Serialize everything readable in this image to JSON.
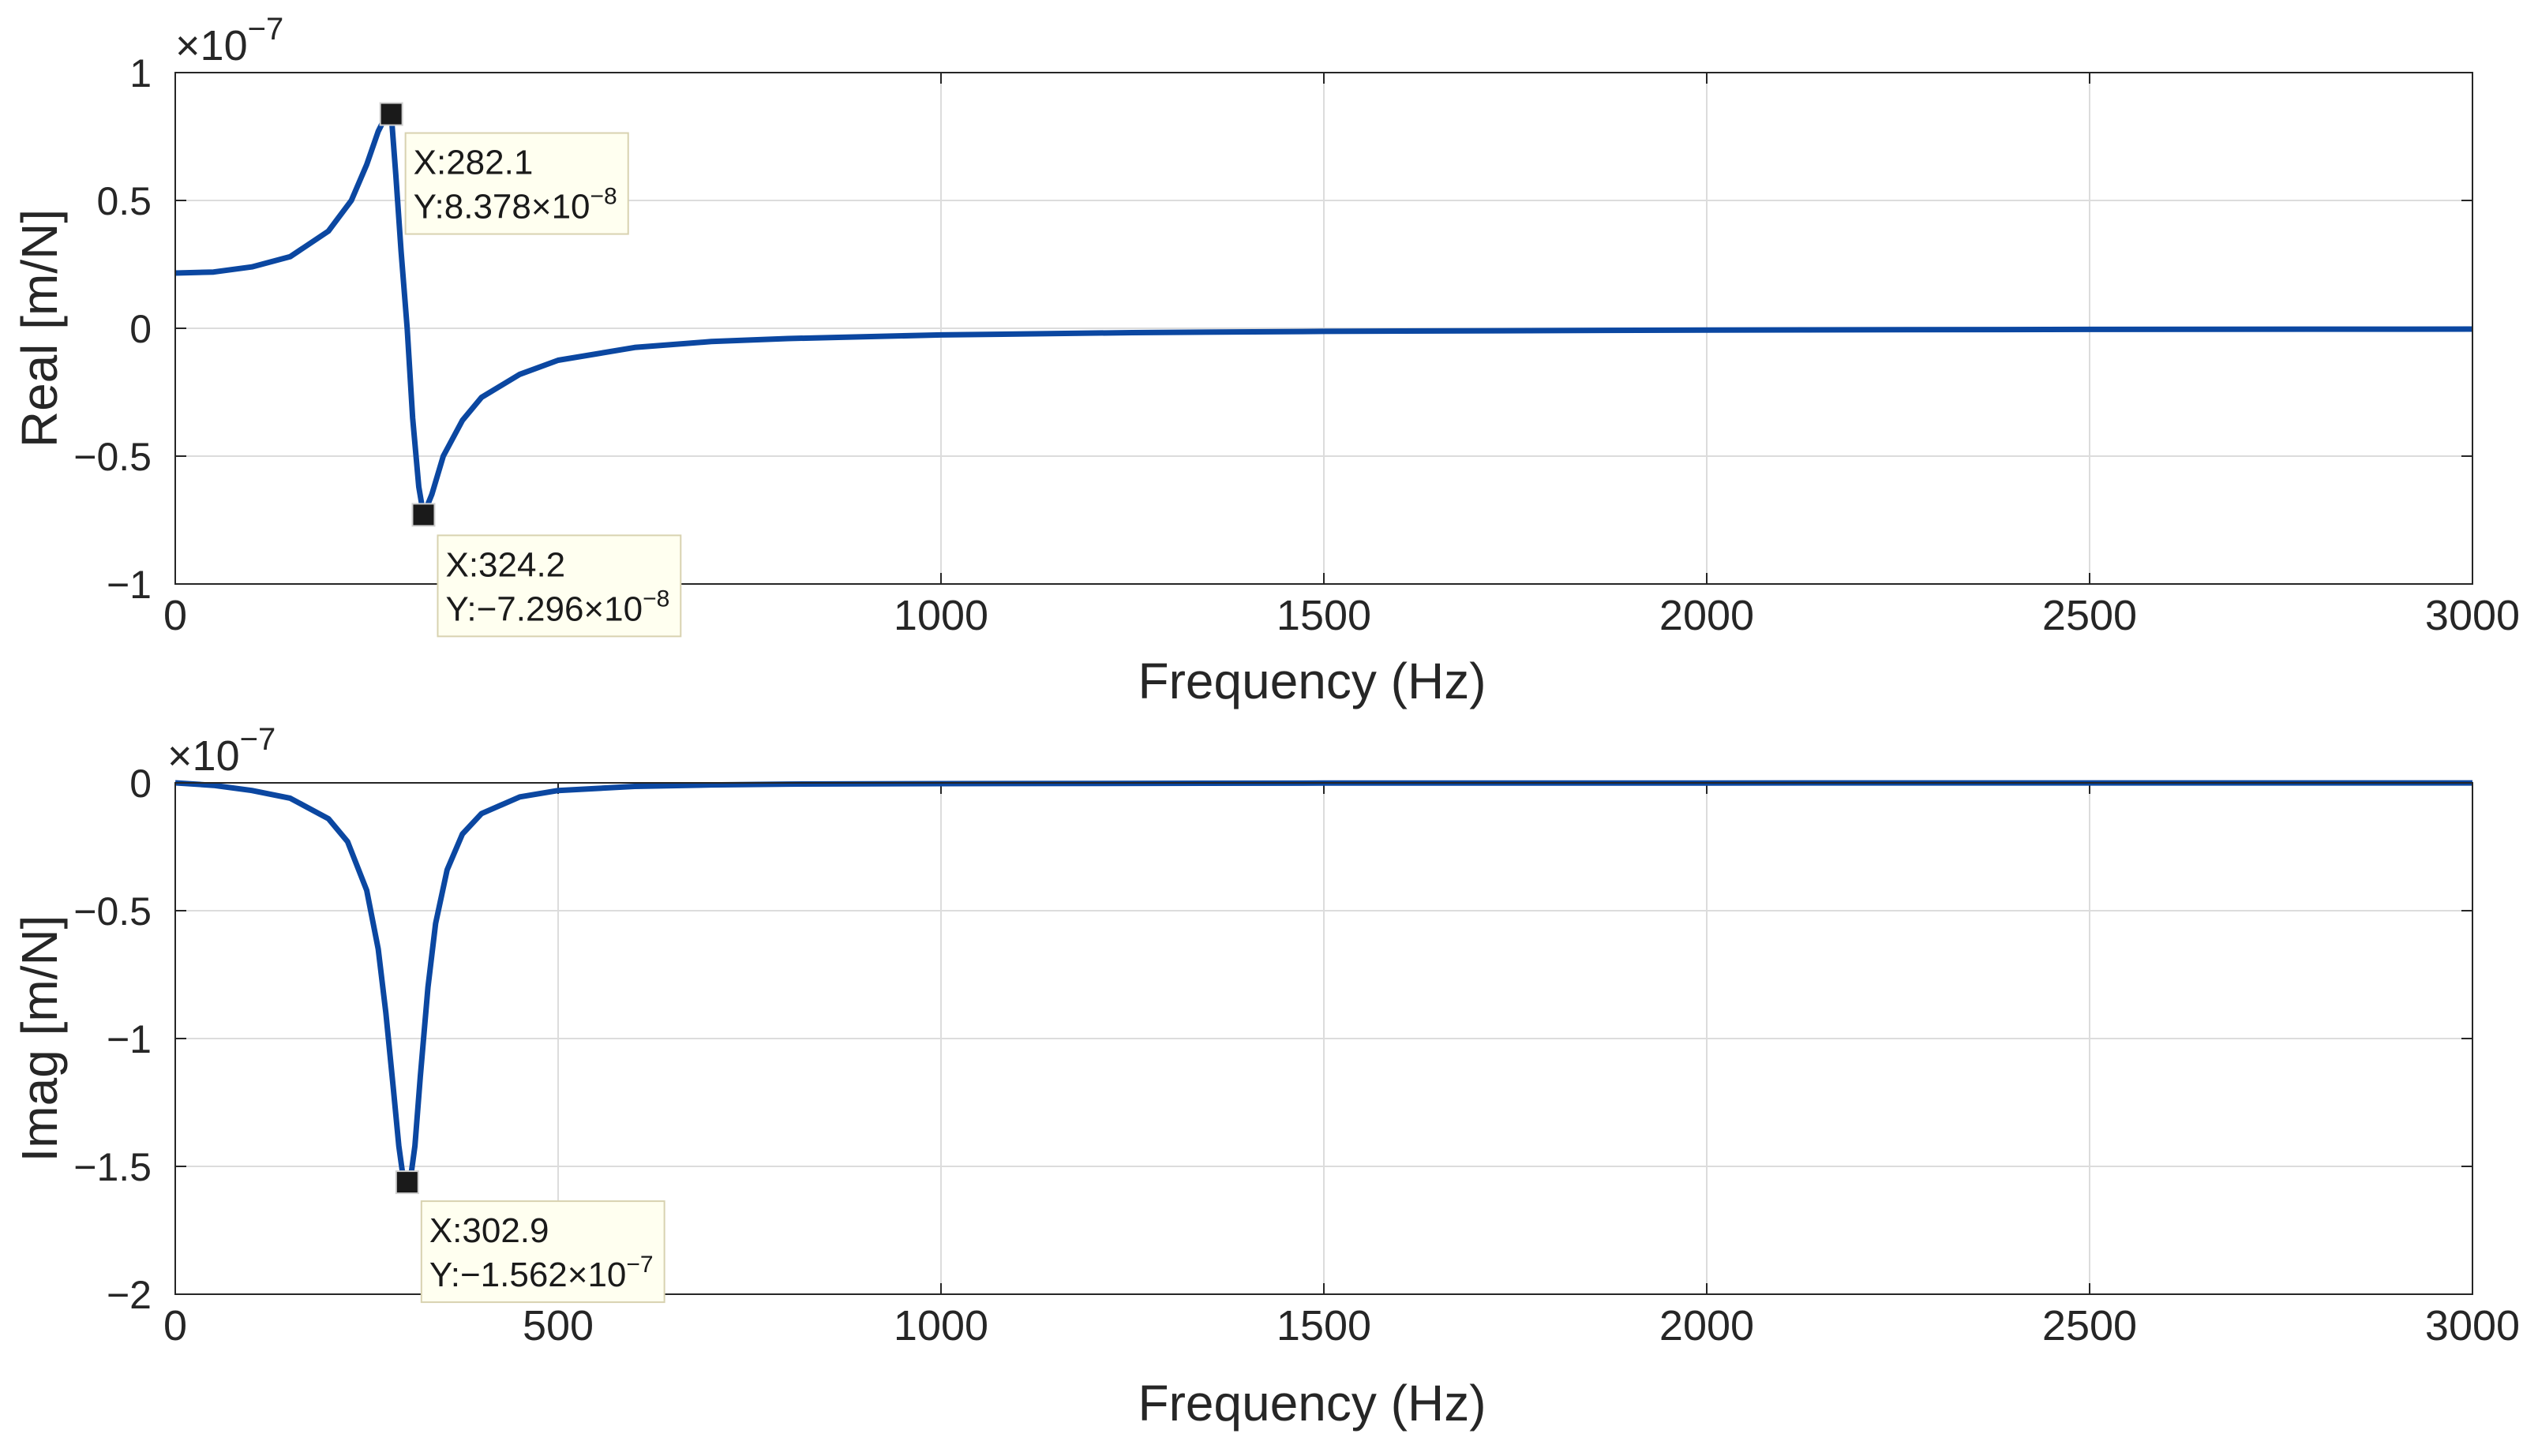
{
  "chart_data": [
    {
      "type": "line",
      "xlabel": "Frequency (Hz)",
      "ylabel": "Real [m/N]",
      "exponent_base": "×10",
      "exponent_power": "−7",
      "xlim": [
        0,
        3000
      ],
      "ylim": [
        -1,
        1
      ],
      "x_ticks": [
        "0",
        "1000",
        "1500",
        "2000",
        "2500",
        "3000"
      ],
      "x_tick_values": [
        0,
        1000,
        1500,
        2000,
        2500,
        3000
      ],
      "y_ticks": [
        "1",
        "0.5",
        "0",
        "−0.5",
        "−1"
      ],
      "y_tick_values": [
        1,
        0.5,
        0,
        -0.5,
        -1
      ],
      "grid": true,
      "line_color": "#0b47a1",
      "series": [
        {
          "x": [
            0,
            50,
            100,
            150,
            200,
            230,
            250,
            265,
            275,
            282.1,
            288,
            295,
            302.9,
            310,
            318,
            324.2,
            335,
            350,
            375,
            400,
            450,
            500,
            600,
            700,
            800,
            1000,
            1250,
            1500,
            2000,
            2500,
            3000
          ],
          "y": [
            0.216,
            0.22,
            0.24,
            0.28,
            0.38,
            0.5,
            0.64,
            0.77,
            0.83,
            0.838,
            0.6,
            0.3,
            0,
            -0.35,
            -0.62,
            -0.73,
            -0.65,
            -0.5,
            -0.36,
            -0.27,
            -0.18,
            -0.125,
            -0.075,
            -0.052,
            -0.04,
            -0.026,
            -0.017,
            -0.012,
            -0.0068,
            -0.0043,
            -0.003
          ]
        }
      ],
      "datatips": [
        {
          "x": 282.1,
          "y": 0.8378,
          "label_x": "X:282.1",
          "label_y": "Y:8.378×10",
          "label_exp": "−8"
        },
        {
          "x": 324.2,
          "y": -0.7296,
          "label_x": "X:324.2",
          "label_y": "Y:−7.296×10",
          "label_exp": "−8"
        }
      ]
    },
    {
      "type": "line",
      "xlabel": "Frequency (Hz)",
      "ylabel": "Imag [m/N]",
      "exponent_base": "×10",
      "exponent_power": "−7",
      "xlim": [
        0,
        3000
      ],
      "ylim": [
        -2,
        0
      ],
      "x_ticks": [
        "0",
        "500",
        "1000",
        "1500",
        "2000",
        "2500",
        "3000"
      ],
      "x_tick_values": [
        0,
        500,
        1000,
        1500,
        2000,
        2500,
        3000
      ],
      "y_ticks": [
        "0",
        "−0.5",
        "−1",
        "−1.5",
        "−2"
      ],
      "y_tick_values": [
        0,
        -0.5,
        -1,
        -1.5,
        -2
      ],
      "grid": true,
      "line_color": "#0b47a1",
      "series": [
        {
          "x": [
            0,
            50,
            100,
            150,
            200,
            225,
            250,
            265,
            275,
            285,
            292,
            297,
            302.9,
            308,
            313,
            320,
            330,
            340,
            355,
            375,
            400,
            450,
            500,
            600,
            700,
            800,
            1000,
            1500,
            2000,
            2500,
            3000
          ],
          "y": [
            0,
            -0.01,
            -0.03,
            -0.06,
            -0.14,
            -0.23,
            -0.42,
            -0.65,
            -0.9,
            -1.2,
            -1.42,
            -1.53,
            -1.562,
            -1.53,
            -1.42,
            -1.15,
            -0.8,
            -0.55,
            -0.34,
            -0.2,
            -0.12,
            -0.055,
            -0.03,
            -0.014,
            -0.008,
            -0.005,
            -0.003,
            -0.001,
            -0.0005,
            -0.0003,
            -0.0002
          ]
        }
      ],
      "datatips": [
        {
          "x": 302.9,
          "y": -1.562,
          "label_x": "X:302.9",
          "label_y": "Y:−1.562×10",
          "label_exp": "−7"
        }
      ]
    }
  ]
}
